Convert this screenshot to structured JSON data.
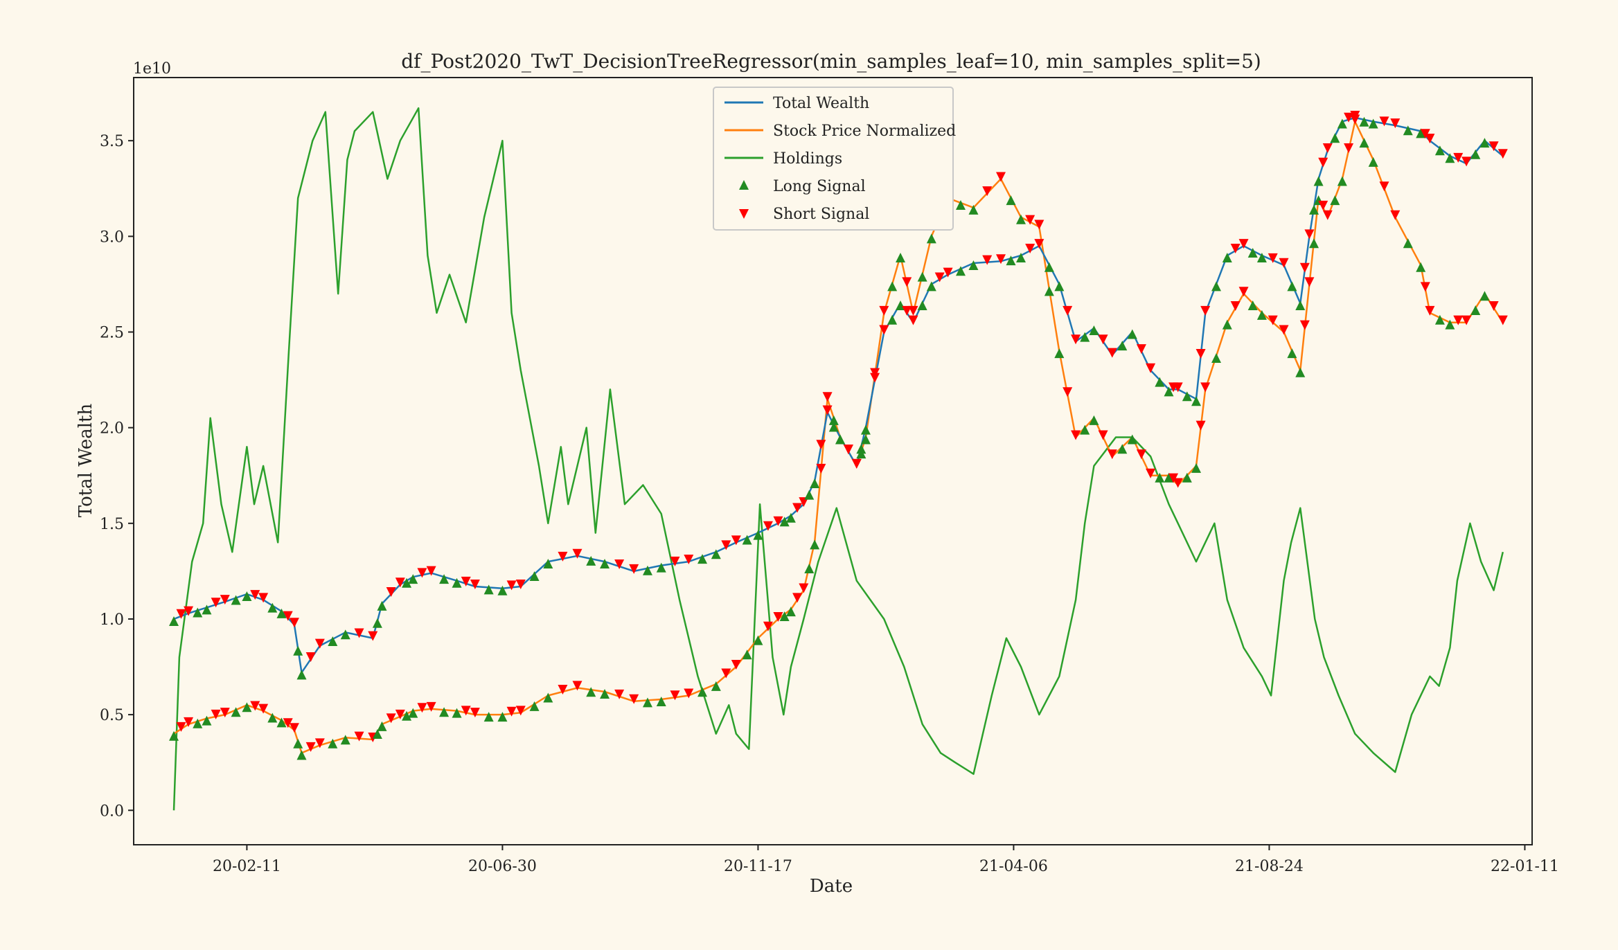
{
  "chart_data": {
    "type": "line",
    "title": "df_Post2020_TwT_DecisionTreeRegressor(min_samples_leaf=10, min_samples_split=5)",
    "xlabel": "Date",
    "ylabel": "Total Wealth",
    "y_offset_label": "1e10",
    "x_ticks": [
      "20-02-11",
      "20-06-30",
      "20-11-17",
      "21-04-06",
      "21-08-24",
      "22-01-11"
    ],
    "x_tick_dates": [
      "2020-02-11",
      "2020-06-30",
      "2020-11-17",
      "2021-04-06",
      "2021-08-24",
      "2022-01-11"
    ],
    "y_ticks": [
      "0.0",
      "0.5",
      "1.0",
      "1.5",
      "2.0",
      "2.5",
      "3.0",
      "3.5"
    ],
    "y_tick_values": [
      0.0,
      0.5,
      1.0,
      1.5,
      2.0,
      2.5,
      3.0,
      3.5
    ],
    "xlim": [
      "2019-12-11",
      "2022-01-15"
    ],
    "ylim": [
      -0.18,
      3.83
    ],
    "y_unit_multiplier": 10000000000.0,
    "legend_position": "upper-center",
    "colors": {
      "total_wealth": "#1f77b4",
      "stock_price": "#ff7f0e",
      "holdings": "#2ca02c",
      "long_signal": "#228b22",
      "short_signal": "#ff0000"
    },
    "legend": [
      {
        "label": "Total Wealth",
        "kind": "line",
        "color": "#1f77b4"
      },
      {
        "label": "Stock Price Normalized",
        "kind": "line",
        "color": "#ff7f0e"
      },
      {
        "label": "Holdings",
        "kind": "line",
        "color": "#2ca02c"
      },
      {
        "label": "Long Signal",
        "kind": "marker-up",
        "color": "#228b22"
      },
      {
        "label": "Short Signal",
        "kind": "marker-down",
        "color": "#ff0000"
      }
    ],
    "series": [
      {
        "name": "Total Wealth",
        "x": [
          "2020-01-02",
          "2020-01-10",
          "2020-01-20",
          "2020-01-30",
          "2020-02-11",
          "2020-02-20",
          "2020-03-01",
          "2020-03-08",
          "2020-03-12",
          "2020-03-22",
          "2020-04-05",
          "2020-04-20",
          "2020-04-25",
          "2020-05-05",
          "2020-05-12",
          "2020-05-22",
          "2020-06-05",
          "2020-06-15",
          "2020-06-30",
          "2020-07-10",
          "2020-07-25",
          "2020-08-10",
          "2020-08-25",
          "2020-09-10",
          "2020-09-25",
          "2020-10-10",
          "2020-10-25",
          "2020-11-05",
          "2020-11-17",
          "2020-11-28",
          "2020-12-05",
          "2020-12-12",
          "2020-12-18",
          "2020-12-25",
          "2021-01-01",
          "2021-01-10",
          "2021-01-15",
          "2021-01-25",
          "2021-02-03",
          "2021-02-10",
          "2021-02-20",
          "2021-03-01",
          "2021-03-15",
          "2021-03-30",
          "2021-04-10",
          "2021-04-20",
          "2021-05-01",
          "2021-05-10",
          "2021-05-20",
          "2021-05-30",
          "2021-06-10",
          "2021-06-20",
          "2021-06-30",
          "2021-07-05",
          "2021-07-15",
          "2021-07-20",
          "2021-08-01",
          "2021-08-10",
          "2021-08-20",
          "2021-09-01",
          "2021-09-10",
          "2021-09-15",
          "2021-09-20",
          "2021-09-25",
          "2021-10-03",
          "2021-10-10",
          "2021-10-20",
          "2021-11-01",
          "2021-11-15",
          "2021-11-20",
          "2021-12-01",
          "2021-12-10",
          "2021-12-20",
          "2021-12-30"
        ],
        "y": [
          1.0,
          1.03,
          1.06,
          1.09,
          1.13,
          1.1,
          1.04,
          0.97,
          0.72,
          0.86,
          0.93,
          0.9,
          1.08,
          1.18,
          1.22,
          1.24,
          1.2,
          1.17,
          1.16,
          1.17,
          1.3,
          1.33,
          1.3,
          1.25,
          1.28,
          1.3,
          1.35,
          1.4,
          1.45,
          1.5,
          1.54,
          1.6,
          1.72,
          2.08,
          1.95,
          1.8,
          2.0,
          2.5,
          2.65,
          2.55,
          2.75,
          2.8,
          2.86,
          2.87,
          2.9,
          2.95,
          2.75,
          2.45,
          2.52,
          2.38,
          2.5,
          2.3,
          2.2,
          2.2,
          2.15,
          2.6,
          2.9,
          2.95,
          2.9,
          2.85,
          2.65,
          3.0,
          3.3,
          3.45,
          3.6,
          3.62,
          3.6,
          3.58,
          3.55,
          3.5,
          3.42,
          3.38,
          3.5,
          3.42
        ]
      },
      {
        "name": "Stock Price Normalized",
        "x": [
          "2020-01-02",
          "2020-01-10",
          "2020-01-20",
          "2020-01-30",
          "2020-02-11",
          "2020-02-20",
          "2020-03-01",
          "2020-03-08",
          "2020-03-12",
          "2020-03-22",
          "2020-04-05",
          "2020-04-20",
          "2020-04-25",
          "2020-05-05",
          "2020-05-12",
          "2020-05-22",
          "2020-06-05",
          "2020-06-15",
          "2020-06-30",
          "2020-07-10",
          "2020-07-25",
          "2020-08-10",
          "2020-08-25",
          "2020-09-10",
          "2020-09-25",
          "2020-10-10",
          "2020-10-25",
          "2020-11-05",
          "2020-11-17",
          "2020-11-28",
          "2020-12-05",
          "2020-12-12",
          "2020-12-18",
          "2020-12-25",
          "2021-01-01",
          "2021-01-10",
          "2021-01-15",
          "2021-01-25",
          "2021-02-03",
          "2021-02-10",
          "2021-02-20",
          "2021-03-01",
          "2021-03-15",
          "2021-03-30",
          "2021-04-10",
          "2021-04-20",
          "2021-05-01",
          "2021-05-10",
          "2021-05-20",
          "2021-05-30",
          "2021-06-10",
          "2021-06-20",
          "2021-06-30",
          "2021-07-05",
          "2021-07-15",
          "2021-07-20",
          "2021-08-01",
          "2021-08-10",
          "2021-08-20",
          "2021-09-01",
          "2021-09-10",
          "2021-09-15",
          "2021-09-20",
          "2021-09-25",
          "2021-10-03",
          "2021-10-10",
          "2021-10-20",
          "2021-11-01",
          "2021-11-15",
          "2021-11-20",
          "2021-12-01",
          "2021-12-10",
          "2021-12-20",
          "2021-12-30"
        ],
        "y": [
          0.4,
          0.45,
          0.48,
          0.5,
          0.55,
          0.52,
          0.47,
          0.42,
          0.3,
          0.34,
          0.38,
          0.37,
          0.45,
          0.49,
          0.52,
          0.53,
          0.52,
          0.5,
          0.5,
          0.51,
          0.6,
          0.64,
          0.62,
          0.57,
          0.58,
          0.6,
          0.66,
          0.75,
          0.9,
          1.0,
          1.05,
          1.15,
          1.4,
          2.15,
          1.95,
          1.8,
          1.95,
          2.6,
          2.9,
          2.6,
          3.0,
          3.2,
          3.15,
          3.3,
          3.1,
          3.05,
          2.4,
          1.95,
          2.05,
          1.85,
          1.95,
          1.75,
          1.75,
          1.7,
          1.8,
          2.2,
          2.55,
          2.7,
          2.6,
          2.5,
          2.3,
          2.75,
          3.2,
          3.1,
          3.3,
          3.6,
          3.4,
          3.1,
          2.85,
          2.6,
          2.55,
          2.55,
          2.7,
          2.55
        ]
      },
      {
        "name": "Holdings",
        "x": [
          "2020-01-02",
          "2020-01-05",
          "2020-01-12",
          "2020-01-18",
          "2020-01-22",
          "2020-01-28",
          "2020-02-03",
          "2020-02-11",
          "2020-02-15",
          "2020-02-20",
          "2020-02-28",
          "2020-03-05",
          "2020-03-10",
          "2020-03-18",
          "2020-03-25",
          "2020-04-01",
          "2020-04-06",
          "2020-04-10",
          "2020-04-20",
          "2020-04-28",
          "2020-05-05",
          "2020-05-15",
          "2020-05-20",
          "2020-05-25",
          "2020-06-01",
          "2020-06-10",
          "2020-06-20",
          "2020-06-30",
          "2020-07-05",
          "2020-07-10",
          "2020-07-20",
          "2020-07-25",
          "2020-08-01",
          "2020-08-05",
          "2020-08-10",
          "2020-08-15",
          "2020-08-20",
          "2020-08-28",
          "2020-09-05",
          "2020-09-15",
          "2020-09-25",
          "2020-10-05",
          "2020-10-15",
          "2020-10-25",
          "2020-11-01",
          "2020-11-05",
          "2020-11-12",
          "2020-11-18",
          "2020-11-25",
          "2020-12-01",
          "2020-12-05",
          "2020-12-12",
          "2020-12-20",
          "2020-12-30",
          "2021-01-10",
          "2021-01-25",
          "2021-02-05",
          "2021-02-15",
          "2021-02-25",
          "2021-03-05",
          "2021-03-15",
          "2021-03-25",
          "2021-04-02",
          "2021-04-10",
          "2021-04-20",
          "2021-05-01",
          "2021-05-10",
          "2021-05-15",
          "2021-05-20",
          "2021-06-01",
          "2021-06-10",
          "2021-06-20",
          "2021-06-30",
          "2021-07-05",
          "2021-07-15",
          "2021-07-25",
          "2021-08-01",
          "2021-08-10",
          "2021-08-20",
          "2021-08-25",
          "2021-09-01",
          "2021-09-05",
          "2021-09-10",
          "2021-09-18",
          "2021-09-23",
          "2021-10-01",
          "2021-10-10",
          "2021-10-20",
          "2021-11-01",
          "2021-11-10",
          "2021-11-20",
          "2021-11-25",
          "2021-12-01",
          "2021-12-05",
          "2021-12-12",
          "2021-12-18",
          "2021-12-25",
          "2021-12-30"
        ],
        "y": [
          0.0,
          0.8,
          1.3,
          1.5,
          2.05,
          1.6,
          1.35,
          1.9,
          1.6,
          1.8,
          1.4,
          2.4,
          3.2,
          3.5,
          3.65,
          2.7,
          3.4,
          3.55,
          3.65,
          3.3,
          3.5,
          3.67,
          2.9,
          2.6,
          2.8,
          2.55,
          3.1,
          3.5,
          2.6,
          2.3,
          1.8,
          1.5,
          1.9,
          1.6,
          1.8,
          2.0,
          1.45,
          2.2,
          1.6,
          1.7,
          1.55,
          1.1,
          0.7,
          0.4,
          0.55,
          0.4,
          0.32,
          1.6,
          0.8,
          0.5,
          0.75,
          1.0,
          1.3,
          1.58,
          1.2,
          1.0,
          0.75,
          0.45,
          0.3,
          0.25,
          0.19,
          0.6,
          0.9,
          0.75,
          0.5,
          0.7,
          1.1,
          1.5,
          1.8,
          1.95,
          1.95,
          1.85,
          1.6,
          1.5,
          1.3,
          1.5,
          1.1,
          0.85,
          0.7,
          0.6,
          1.2,
          1.4,
          1.58,
          1.0,
          0.8,
          0.6,
          0.4,
          0.3,
          0.2,
          0.5,
          0.7,
          0.65,
          0.85,
          1.2,
          1.5,
          1.3,
          1.15,
          1.35
        ]
      }
    ]
  }
}
